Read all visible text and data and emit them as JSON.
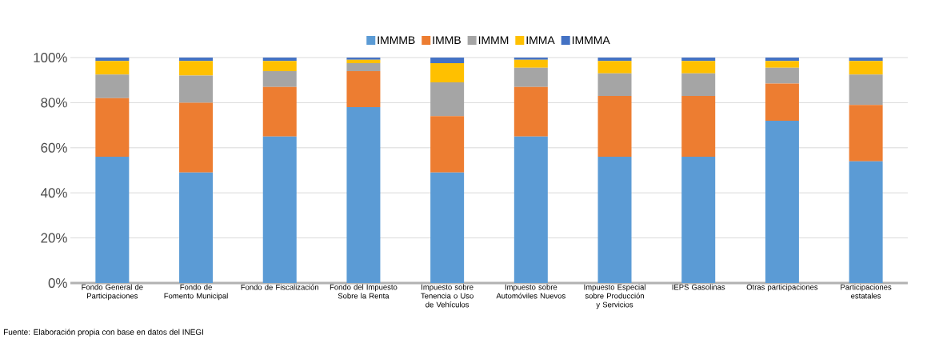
{
  "chart_data": {
    "type": "bar",
    "stacked": true,
    "categories": [
      "Fondo General de Participaciones",
      "Fondo de Fomento Municipal",
      "Fondo de Fiscalización",
      "Fondo del Impuesto Sobre la Renta",
      "Impuesto sobre Tenencia o Uso de Vehículos",
      "Impuesto sobre Automóviles Nuevos",
      "Impuesto Especial sobre Producción y Servicios",
      "IEPS Gasolinas",
      "Otras participaciones",
      "Participaciones estatales"
    ],
    "series": [
      {
        "name": "IMMMB",
        "color": "#5b9bd5",
        "values": [
          56,
          49,
          65,
          78,
          49,
          65,
          56,
          56,
          72,
          54
        ]
      },
      {
        "name": "IMMB",
        "color": "#ed7d31",
        "values": [
          26,
          31,
          22,
          16,
          25,
          22,
          27,
          27,
          16.5,
          25
        ]
      },
      {
        "name": "IMMM",
        "color": "#a5a5a5",
        "values": [
          10.5,
          12,
          7,
          3.5,
          15,
          8.5,
          10,
          10,
          7,
          13.5
        ]
      },
      {
        "name": "IMMA",
        "color": "#ffc000",
        "values": [
          6,
          6.5,
          4.5,
          1.5,
          8.5,
          3.5,
          5.5,
          5.5,
          3,
          6
        ]
      },
      {
        "name": "IMMMA",
        "color": "#4472c4",
        "values": [
          1.5,
          1.5,
          1.5,
          1,
          2.5,
          1,
          1.5,
          1.5,
          1.5,
          1.5
        ]
      }
    ],
    "ylim": [
      0,
      100
    ],
    "yticks": [
      {
        "value": 0,
        "label": "0%"
      },
      {
        "value": 20,
        "label": "20%"
      },
      {
        "value": 40,
        "label": "40%"
      },
      {
        "value": 60,
        "label": "60%"
      },
      {
        "value": 80,
        "label": "80%"
      },
      {
        "value": 100,
        "label": "100%"
      }
    ],
    "grid": "y",
    "legend": "top",
    "annotations": [
      "Fuente: Elaboración propia con base en datos del INEGI"
    ]
  }
}
